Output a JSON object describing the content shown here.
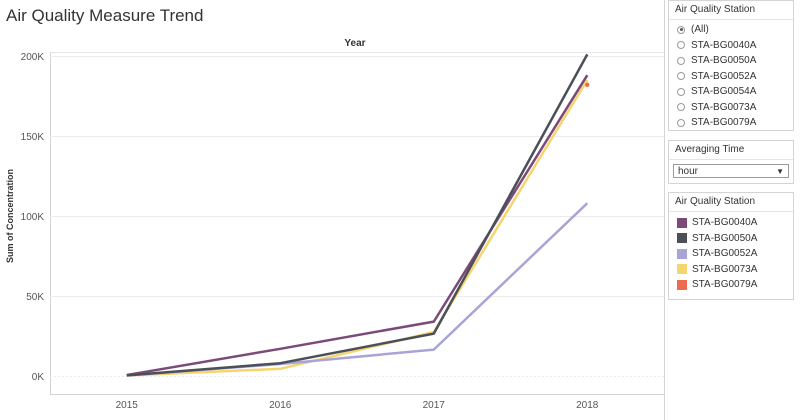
{
  "title": "Air Quality Measure Trend",
  "filter_station": {
    "title": "Air Quality Station",
    "options": [
      "(All)",
      "STA-BG0040A",
      "STA-BG0050A",
      "STA-BG0052A",
      "STA-BG0054A",
      "STA-BG0073A",
      "STA-BG0079A"
    ],
    "selected": "(All)"
  },
  "filter_averaging": {
    "title": "Averaging Time",
    "value": "hour"
  },
  "legend": {
    "title": "Air Quality Station",
    "items": [
      {
        "label": "STA-BG0040A",
        "color": "#7b4a78"
      },
      {
        "label": "STA-BG0050A",
        "color": "#4a4f58"
      },
      {
        "label": "STA-BG0052A",
        "color": "#a8a4d6"
      },
      {
        "label": "STA-BG0073A",
        "color": "#f5d56f"
      },
      {
        "label": "STA-BG0079A",
        "color": "#ee6a50"
      }
    ]
  },
  "chart_data": {
    "type": "line",
    "column_header": "Year",
    "ylabel": "Sum of Concentration",
    "categories": [
      "2015",
      "2016",
      "2017",
      "2018"
    ],
    "ylim": [
      0,
      215000
    ],
    "yticks": [
      0,
      50000,
      100000,
      150000,
      200000
    ],
    "ytick_labels": [
      "0K",
      "50K",
      "100K",
      "150K",
      "200K"
    ],
    "series": [
      {
        "name": "STA-BG0073A",
        "color": "#f5d56f",
        "values": [
          300,
          4500,
          27500,
          185000
        ]
      },
      {
        "name": "STA-BG0052A",
        "color": "#a8a4d6",
        "values": [
          300,
          7500,
          16500,
          108000
        ]
      },
      {
        "name": "STA-BG0040A",
        "color": "#7b4a78",
        "values": [
          600,
          17000,
          34000,
          188000
        ]
      },
      {
        "name": "STA-BG0079A",
        "color": "#ee6a50",
        "values": [
          null,
          null,
          null,
          182000
        ]
      },
      {
        "name": "STA-BG0050A",
        "color": "#4a4f58",
        "values": [
          400,
          8000,
          26500,
          201000
        ]
      }
    ]
  }
}
